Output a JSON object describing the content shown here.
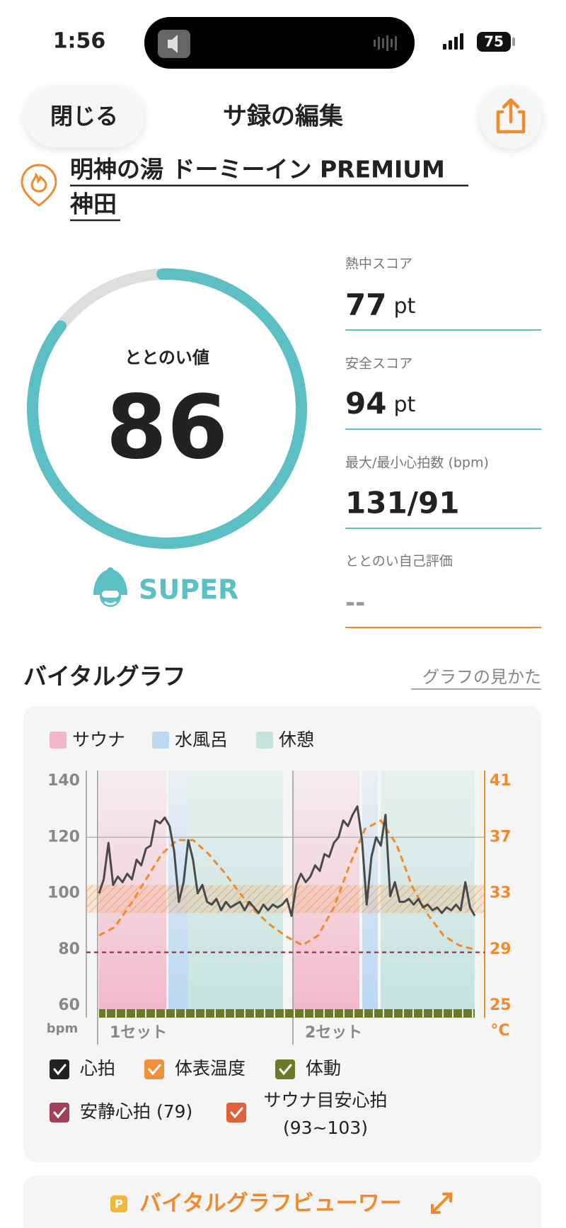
{
  "status_bar": {
    "time": "1:56",
    "battery": "75"
  },
  "header": {
    "close": "閉じる",
    "title": "サ録の編集"
  },
  "facility": {
    "name_lines": [
      "明神の湯 ドーミーイン PREMIUM",
      "神田"
    ]
  },
  "score": {
    "label": "ととのい値",
    "value": 86,
    "rank": "SUPER"
  },
  "stats": [
    {
      "label": "熱中スコア",
      "value": 77,
      "unit": "pt"
    },
    {
      "label": "安全スコア",
      "value": 94,
      "unit": "pt"
    },
    {
      "label": "最大/最小心拍数 (bpm)",
      "value": "131/91"
    },
    {
      "label": "ととのい自己評価",
      "value": "--"
    }
  ],
  "vital_graph": {
    "title": "バイタルグラフ",
    "help_link": "グラフの見かた",
    "legend": [
      {
        "name": "サウナ",
        "color": "#f2b8c9"
      },
      {
        "name": "水風呂",
        "color": "#bcd7f2"
      },
      {
        "name": "休憩",
        "color": "#c6e3df"
      }
    ],
    "ylim": [
      60,
      140
    ],
    "yticks": [
      60,
      80,
      100,
      120,
      140
    ],
    "y2lim": [
      25,
      41
    ],
    "y2ticks": [
      25,
      29,
      33,
      37,
      41
    ],
    "y_unit": "bpm",
    "y2_unit": "°C",
    "sets": [
      "1セット",
      "2セット"
    ],
    "heart_rate": {
      "color": "#4a4a4a",
      "values": [
        100,
        105,
        118,
        103,
        106,
        104,
        107,
        105,
        112,
        110,
        116,
        117,
        126,
        125,
        127,
        124,
        115,
        97,
        104,
        119,
        112,
        100,
        103,
        97,
        96,
        98,
        94,
        97,
        95,
        96,
        97,
        94,
        97,
        95,
        93,
        96,
        94,
        96,
        95,
        96,
        98,
        92,
        103,
        107,
        104,
        106,
        110,
        108,
        114,
        113,
        118,
        120,
        126,
        124,
        128,
        131,
        119,
        96,
        113,
        120,
        117,
        128,
        99,
        104,
        97,
        97,
        98,
        96,
        98,
        95,
        96,
        94,
        95,
        93,
        95,
        94,
        96,
        94,
        104,
        95,
        92
      ]
    },
    "temperature": {
      "color": "#f08a2c",
      "axis": "y2",
      "values": [
        30,
        30.6,
        32.2,
        34,
        35.8,
        36.8,
        36.8,
        35.8,
        34.5,
        33,
        31.7,
        30.7,
        29.9,
        29.3,
        30,
        32,
        35,
        37.6,
        38.2,
        36.5,
        33.5,
        31.5,
        30,
        29.3,
        29
      ]
    },
    "rest_hr": 79,
    "rest_hr_color": "#a0405a",
    "target_range": [
      93,
      103
    ],
    "checkboxes": [
      {
        "label_lines": [
          "心拍"
        ],
        "color": "#222222"
      },
      {
        "label_lines": [
          "体表温度"
        ],
        "color": "#f0913a"
      },
      {
        "label_lines": [
          "体動"
        ],
        "color": "#6b7a2a"
      },
      {
        "label_lines": [
          "安静心拍 (79)"
        ],
        "color": "#a0405a"
      },
      {
        "label_lines": [
          "サウナ目安心拍",
          "(93~103)"
        ],
        "color": "#e0603a"
      }
    ]
  },
  "viewer": {
    "badge": "P",
    "label": "バイタルグラフビューワー"
  }
}
